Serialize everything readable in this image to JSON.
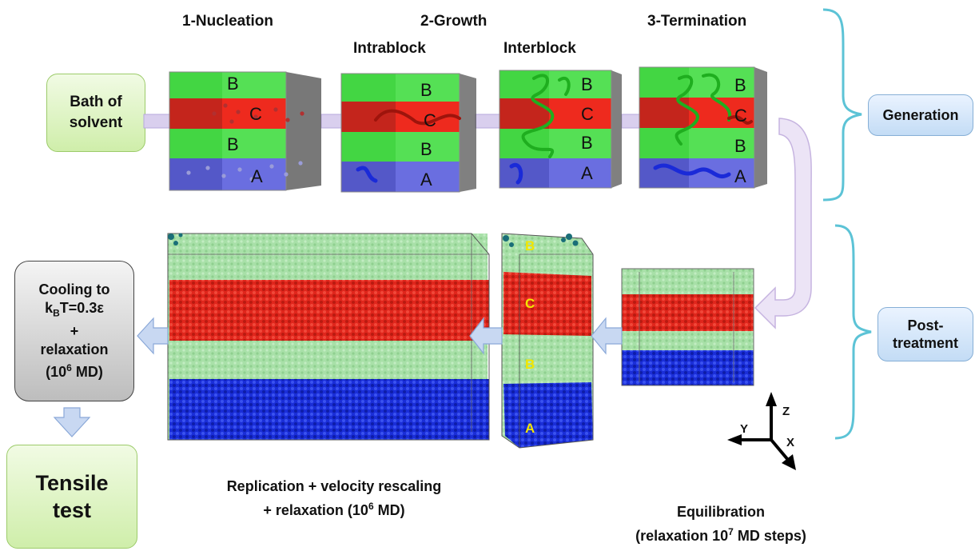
{
  "stages": {
    "nucleation": "1-Nucleation",
    "growth": "2-Growth",
    "termination": "3-Termination",
    "intrablock": "Intrablock",
    "interblock": "Interblock"
  },
  "bath": {
    "line1": "Bath of",
    "line2": "solvent"
  },
  "phases": {
    "generation": "Generation",
    "post_line1": "Post-",
    "post_line2": "treatment"
  },
  "blocks": {
    "a": "A",
    "b": "B",
    "c": "C"
  },
  "cooling": {
    "line1": "Cooling to",
    "kb_k": "k",
    "kb_sub": "B",
    "kb_rest": "T=0.3ε",
    "plus": "+",
    "relax": "relaxation",
    "md_pre": "(10",
    "md_exp": "6",
    "md_post": " MD)"
  },
  "tensile": {
    "line1": "Tensile",
    "line2": "test"
  },
  "replication": {
    "line1": "Replication + velocity rescaling",
    "line2_pre": "+ relaxation (10",
    "line2_exp": "6",
    "line2_post": " MD)"
  },
  "equilibration": {
    "line1": "Equilibration",
    "line2_pre": "(relaxation 10",
    "line2_exp": "7",
    "line2_post": "  MD steps)"
  },
  "axes": {
    "x": "X",
    "y": "Y",
    "z": "Z"
  },
  "colors": {
    "green": "#3fd43f",
    "red": "#e0261c",
    "blue": "#4a4fd8",
    "dark_red": "#b11a10",
    "dark_blue": "#1626c8",
    "brace": "#5cc3d6",
    "arrow": "#c8d8f2",
    "arrow_stroke": "#8aa8d8"
  }
}
